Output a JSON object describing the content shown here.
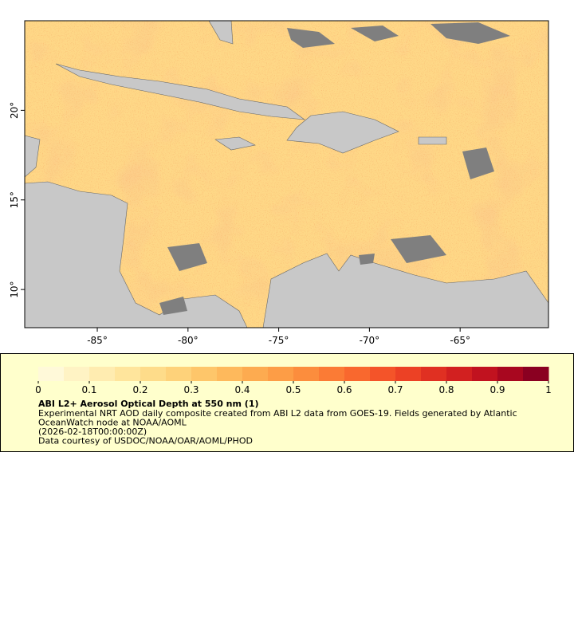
{
  "chart_data": {
    "type": "map",
    "xlim": [
      -89,
      -60.13
    ],
    "ylim": [
      7.87,
      25
    ],
    "xticks": [
      {
        "value": -85,
        "label": "-85°"
      },
      {
        "value": -80,
        "label": "-80°"
      },
      {
        "value": -75,
        "label": "-75°"
      },
      {
        "value": -70,
        "label": "-70°"
      },
      {
        "value": -65,
        "label": "-65°"
      }
    ],
    "yticks": [
      {
        "value": 10,
        "label": "10°"
      },
      {
        "value": 15,
        "label": "15°"
      },
      {
        "value": 20,
        "label": "20°"
      }
    ],
    "colorbar": {
      "lim": [
        0,
        1
      ],
      "ticks": [
        0,
        0.1,
        0.2,
        0.3,
        0.4,
        0.5,
        0.6,
        0.7,
        0.8,
        0.9,
        1
      ],
      "colors": [
        "#fff9d9",
        "#fff3c4",
        "#ffecb0",
        "#ffe59c",
        "#fedc8a",
        "#fed27a",
        "#fec66a",
        "#feb95c",
        "#fdab50",
        "#fd9d46",
        "#fc8d3d",
        "#fb7b35",
        "#f9682e",
        "#f45429",
        "#ec4125",
        "#e03022",
        "#d22020",
        "#c1121f",
        "#a8071f",
        "#8a0021"
      ]
    },
    "title": "ABI L2+ Aerosol Optical Depth at 550 nm (1)",
    "description": [
      "Experimental NRT AOD daily composite created from ABI L2 data from GOES-19. Fields generated by Atlantic",
      "OceanWatch node at NOAA/AOML",
      "(2026-02-18T00:00:00Z)",
      "Data courtesy of USDOC/NOAA/OAR/AOML/PHOD"
    ]
  }
}
